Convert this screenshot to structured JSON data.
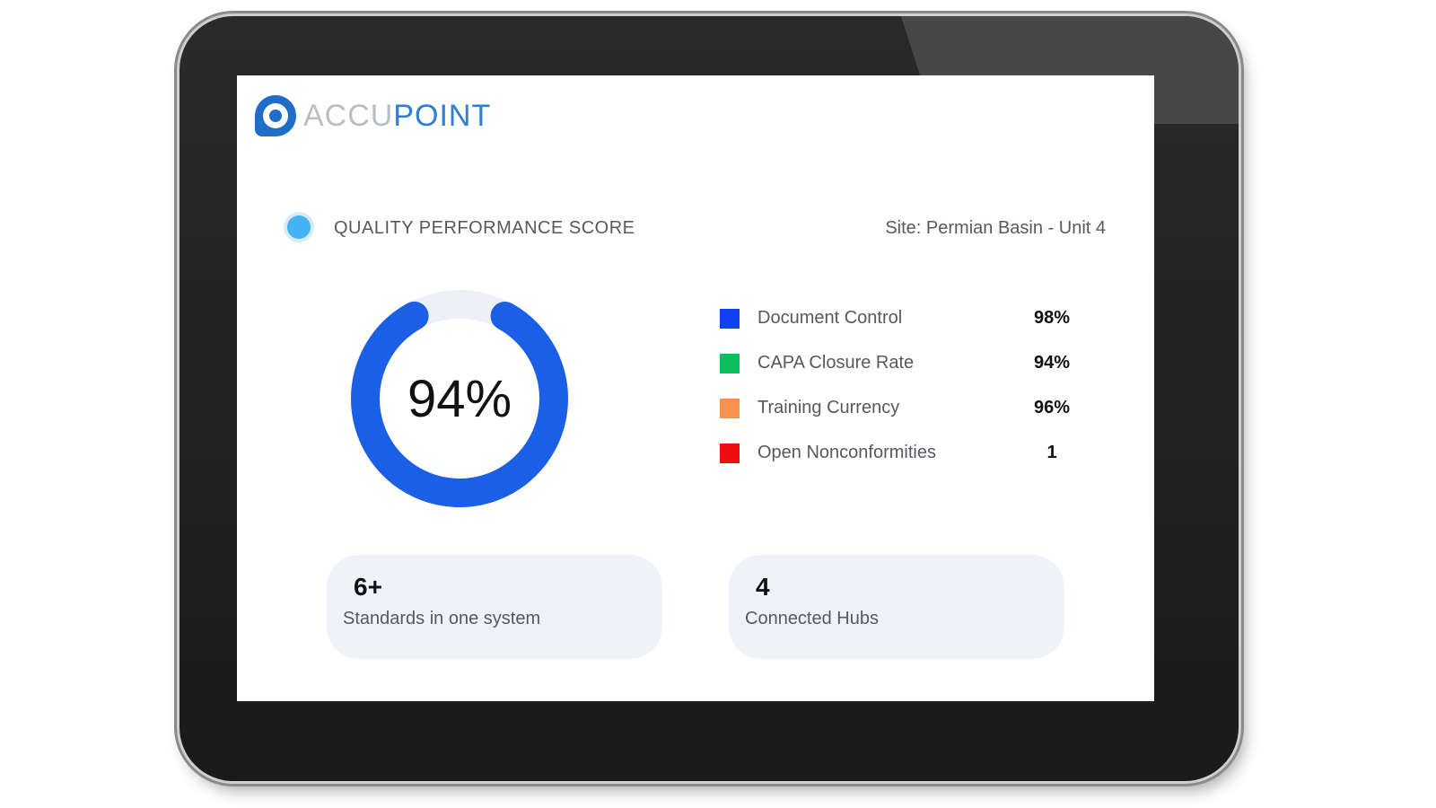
{
  "brand": {
    "name_part1": "ACCU",
    "name_part2": "POINT",
    "color_light": "#b9bec6",
    "color_accent": "#2f7fd6",
    "icon": "accupoint-logo-icon"
  },
  "header": {
    "title": "QUALITY PERFORMANCE SCORE",
    "site": "Site: Permian Basin - Unit 4",
    "status_color": "#43b3f3"
  },
  "score": {
    "label": "94%",
    "percent": 94,
    "ring_color": "#1a5fe6",
    "track_color": "#edf1f6"
  },
  "metrics": [
    {
      "label": "Document Control",
      "value": "98%",
      "color": "#1041f5"
    },
    {
      "label": "CAPA Closure Rate",
      "value": "94%",
      "color": "#0fbd5c"
    },
    {
      "label": "Training Currency",
      "value": "96%",
      "color": "#f8924a"
    },
    {
      "label": "Open Nonconformities",
      "value": "1",
      "color": "#ef0e0e"
    }
  ],
  "cards": [
    {
      "number": "6+",
      "label": "Standards in one system"
    },
    {
      "number": "4",
      "label": "Connected Hubs"
    }
  ]
}
